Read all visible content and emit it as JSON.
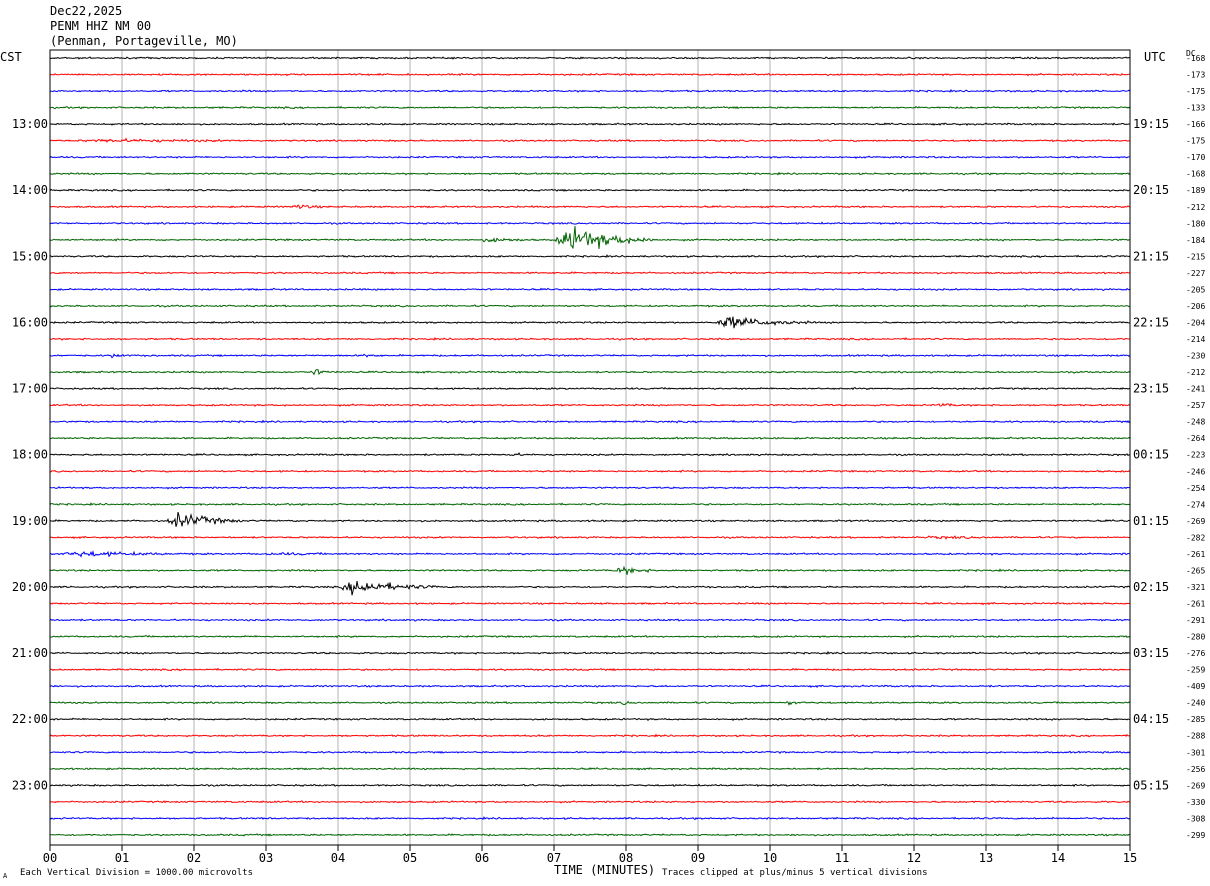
{
  "header": {
    "date": "Dec22,2025",
    "station": "PENM HHZ NM 00",
    "location": "(Penman, Portageville, MO)"
  },
  "left_tz": "CST",
  "right_tz": "UTC",
  "dc_label": "DC",
  "footer": {
    "scale_note": "Each Vertical Division = 1000.00 microvolts",
    "clip_note": "Traces clipped at plus/minus 5 vertical divisions",
    "corner_mark": "A"
  },
  "colors": {
    "trace_cycle": [
      "#000000",
      "#ff0000",
      "#0000ff",
      "#006400"
    ],
    "grid": "#a0a0a0",
    "frame": "#000000"
  },
  "chart_data": {
    "type": "line",
    "title": "",
    "xlabel": "TIME (MINUTES)",
    "ylabel": "",
    "xlim": [
      0,
      15
    ],
    "x_ticks": [
      "00",
      "01",
      "02",
      "03",
      "04",
      "05",
      "06",
      "07",
      "08",
      "09",
      "10",
      "11",
      "12",
      "13",
      "14",
      "15"
    ],
    "left_hour_labels": [
      "13:00",
      "14:00",
      "15:00",
      "16:00",
      "17:00",
      "18:00",
      "19:00",
      "20:00",
      "21:00",
      "22:00",
      "23:00"
    ],
    "right_hour_labels": [
      "19:15",
      "20:15",
      "21:15",
      "22:15",
      "23:15",
      "00:15",
      "01:15",
      "02:15",
      "03:15",
      "04:15",
      "05:15"
    ],
    "dc_offsets": [
      "-168",
      "-173",
      "-175",
      "-133",
      "-166",
      "-175",
      "-170",
      "-168",
      "-189",
      "-212",
      "-180",
      "-184",
      "-215",
      "-227",
      "-205",
      "-206",
      "-204",
      "-214",
      "-230",
      "-212",
      "-241",
      "-257",
      "-248",
      "-264",
      "-223",
      "-246",
      "-254",
      "-274",
      "-269",
      "-282",
      "-261",
      "-265",
      "-321",
      "-261",
      "-291",
      "-280",
      "-276",
      "-259",
      "-409",
      "-240",
      "-285",
      "-288",
      "-301",
      "-256",
      "-269",
      "-330",
      "-308",
      "-299"
    ],
    "trace_count": 48,
    "grid": true,
    "events": [
      {
        "trace": 4,
        "start": 12.0,
        "end": 15.0,
        "amp": 0.25
      },
      {
        "trace": 5,
        "start": 0.0,
        "end": 5.2,
        "amp": 0.45
      },
      {
        "trace": 9,
        "start": 3.3,
        "end": 4.1,
        "amp": 0.6
      },
      {
        "trace": 11,
        "start": 5.9,
        "end": 7.1,
        "amp": 0.6
      },
      {
        "trace": 11,
        "start": 7.0,
        "end": 8.4,
        "amp": 3.0
      },
      {
        "trace": 16,
        "start": 9.2,
        "end": 10.6,
        "amp": 1.6
      },
      {
        "trace": 18,
        "start": 0.8,
        "end": 1.3,
        "amp": 0.6
      },
      {
        "trace": 18,
        "start": 4.3,
        "end": 4.9,
        "amp": 0.5
      },
      {
        "trace": 19,
        "start": 3.6,
        "end": 4.0,
        "amp": 0.9
      },
      {
        "trace": 21,
        "start": 12.3,
        "end": 12.8,
        "amp": 0.6
      },
      {
        "trace": 24,
        "start": 6.3,
        "end": 6.9,
        "amp": 0.5
      },
      {
        "trace": 28,
        "start": 1.6,
        "end": 2.7,
        "amp": 1.9
      },
      {
        "trace": 28,
        "start": 7.4,
        "end": 8.3,
        "amp": 0.3
      },
      {
        "trace": 29,
        "start": 11.8,
        "end": 15.0,
        "amp": 0.35
      },
      {
        "trace": 30,
        "start": 0.0,
        "end": 2.6,
        "amp": 0.7
      },
      {
        "trace": 30,
        "start": 2.6,
        "end": 6.0,
        "amp": 0.35
      },
      {
        "trace": 31,
        "start": 7.8,
        "end": 8.6,
        "amp": 1.0
      },
      {
        "trace": 32,
        "start": 4.0,
        "end": 5.4,
        "amp": 1.8
      },
      {
        "trace": 39,
        "start": 7.9,
        "end": 8.3,
        "amp": 0.5
      },
      {
        "trace": 39,
        "start": 10.2,
        "end": 10.6,
        "amp": 0.6
      },
      {
        "trace": 46,
        "start": 13.8,
        "end": 14.4,
        "amp": 0.3
      }
    ]
  }
}
